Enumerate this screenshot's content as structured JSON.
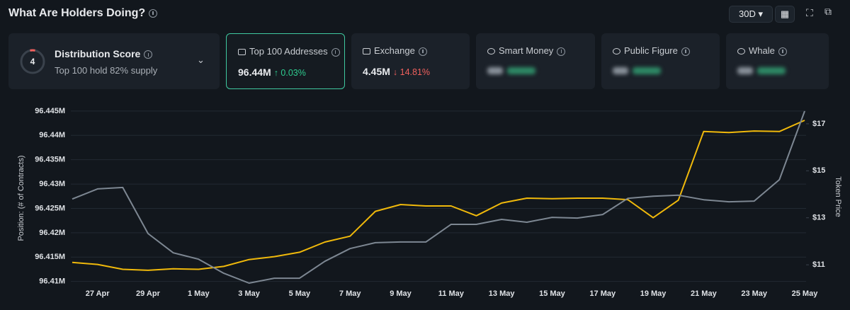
{
  "header": {
    "title": "What Are Holders Doing?",
    "period": "30D"
  },
  "score_card": {
    "score": "4",
    "title": "Distribution Score",
    "subtitle": "Top 100 hold 82% supply"
  },
  "metric_cards": [
    {
      "title": "Top 100 Addresses",
      "value": "96.44M",
      "change": "↑ 0.03%"
    },
    {
      "title": "Exchange",
      "value": "4.45M",
      "change": "↓ 14.81%"
    },
    {
      "title": "Smart Money"
    },
    {
      "title": "Public Figure"
    },
    {
      "title": "Whale"
    }
  ],
  "chart_data": {
    "type": "line",
    "y_label": "Position: (# of Contracts)",
    "y2_label": "Token Price",
    "categories": [
      null,
      "27 Apr",
      null,
      "29 Apr",
      null,
      "1 May",
      null,
      "3 May",
      null,
      "5 May",
      null,
      "7 May",
      null,
      "9 May",
      null,
      "11 May",
      null,
      "13 May",
      null,
      "15 May",
      null,
      "17 May",
      null,
      "19 May",
      null,
      "21 May",
      null,
      "23 May",
      null,
      "25 May"
    ],
    "series": [
      {
        "name": "Position",
        "color": "#f0b90b",
        "axis": "y",
        "values": [
          96413900,
          96413500,
          96412500,
          96412300,
          96412600,
          96412500,
          96413100,
          96414500,
          96415100,
          96416000,
          96418100,
          96419300,
          96424400,
          96425800,
          96425500,
          96425500,
          96423500,
          96426100,
          96427100,
          96427000,
          96427100,
          96427100,
          96426800,
          96423100,
          96426700,
          96440800,
          96440600,
          96440900,
          96440800,
          96443100
        ]
      },
      {
        "name": "Token Price",
        "color": "#7d8792",
        "axis": "y2",
        "values": [
          13.8,
          14.23,
          14.29,
          12.33,
          11.51,
          11.24,
          10.64,
          10.22,
          10.43,
          10.43,
          11.15,
          11.69,
          11.94,
          11.97,
          11.97,
          12.72,
          12.72,
          12.93,
          12.81,
          13.02,
          12.99,
          13.14,
          13.83,
          13.92,
          13.96,
          13.77,
          13.68,
          13.71,
          14.62,
          17.54
        ]
      }
    ],
    "ylim": [
      96408500,
      96446000
    ],
    "yticks": [
      {
        "value": 96410000,
        "label": "96.41M"
      },
      {
        "value": 96415000,
        "label": "96.415M"
      },
      {
        "value": 96420000,
        "label": "96.42M"
      },
      {
        "value": 96425000,
        "label": "96.425M"
      },
      {
        "value": 96430000,
        "label": "96.43M"
      },
      {
        "value": 96435000,
        "label": "96.435M"
      },
      {
        "value": 96440000,
        "label": "96.44M"
      },
      {
        "value": 96445000,
        "label": "96.445M"
      }
    ],
    "y2lim": [
      9.98,
      17.75
    ],
    "y2ticks": [
      {
        "value": 11,
        "label": "$11"
      },
      {
        "value": 13,
        "label": "$13"
      },
      {
        "value": 15,
        "label": "$15"
      },
      {
        "value": 17,
        "label": "$17"
      }
    ],
    "grid": true
  }
}
